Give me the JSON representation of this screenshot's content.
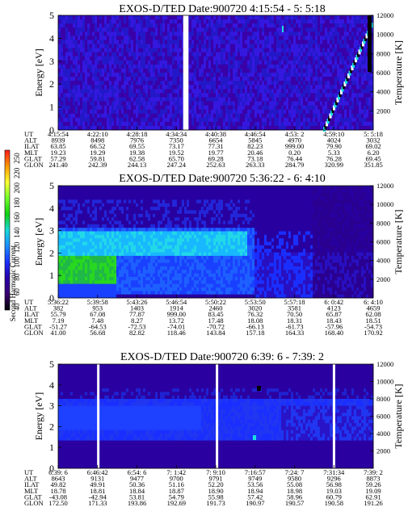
{
  "colors": {
    "background": "#ffffff",
    "low": "#2a008f",
    "mid": "#1a2fff",
    "high": "#19e8e8",
    "peak": "#29d629",
    "gap": "#ffffff"
  },
  "colorbar": {
    "label": "Second Harmonic Current",
    "ticks": [
      "250",
      "220",
      "200",
      "180",
      "160",
      "140",
      "120",
      "100",
      "80",
      "60",
      "40"
    ],
    "stops": [
      "#ff1a1a",
      "#ff9900",
      "#ffff33",
      "#73ff2a",
      "#10d010",
      "#18d8d8",
      "#1a8dff",
      "#1a2fff",
      "#2800a8",
      "#3a0070",
      "#000000"
    ]
  },
  "chart_data": [
    {
      "type": "heatmap",
      "title": "EXOS-D/TED   Date:900720  4:15:54 - 5: 5:18",
      "ylabel": "Energy [eV]",
      "y2label": "Temperature [K]",
      "ylim": [
        0,
        5
      ],
      "yticks": [
        "0",
        "1",
        "2",
        "3",
        "4",
        "5"
      ],
      "y2lim": [
        0,
        12000
      ],
      "y2ticks": [
        "2000",
        "4000",
        "6000",
        "8000",
        "10000",
        "12000"
      ],
      "x_info": [
        [
          "UT",
          "4:15:54",
          "4:22:10",
          "4:28:18",
          "4:34:34",
          "4:40:38",
          "4:46:54",
          "4:53: 2",
          "4:59:10",
          "5: 5:18"
        ],
        [
          "ALT",
          "8939",
          "8498",
          "7976",
          "7350",
          "6654",
          "5845",
          "4970",
          "4024",
          "3032"
        ],
        [
          "ILAT",
          "63.85",
          "66.52",
          "69.55",
          "73.17",
          "77.31",
          "82.23",
          "999.00",
          "79.90",
          "69.02"
        ],
        [
          "MLT",
          "19.23",
          "19.29",
          "19.38",
          "19.52",
          "19.77",
          "20.46",
          "0.20",
          "5.33",
          "6.20"
        ],
        [
          "GLAT",
          "57.29",
          "59.81",
          "62.58",
          "65.70",
          "69.28",
          "73.18",
          "76.44",
          "76.28",
          "69.45"
        ],
        [
          "GLON",
          "241.40",
          "242.39",
          "244.13",
          "247.24",
          "252.63",
          "263.33",
          "284.79",
          "320.99",
          "351.85"
        ]
      ],
      "gaps": [
        {
          "from": "4:35:30",
          "to": "4:36:20"
        }
      ]
    },
    {
      "type": "heatmap",
      "title": "EXOS-D/TED   Date:900720  5:36:22 - 6: 4:10",
      "ylabel": "Energy [eV]",
      "y2label": "Temperature [K]",
      "ylim": [
        0,
        5
      ],
      "yticks": [
        "0",
        "1",
        "2",
        "3",
        "4",
        "5"
      ],
      "y2lim": [
        0,
        12000
      ],
      "y2ticks": [
        "2000",
        "4000",
        "6000",
        "8000",
        "10000",
        "12000"
      ],
      "x_info": [
        [
          "UT",
          "5:36:22",
          "5:39:58",
          "5:43:26",
          "5:46:54",
          "5:50:22",
          "5:53:50",
          "5:57:18",
          "6: 0:42",
          "6: 4:10"
        ],
        [
          "ALT",
          "382",
          "953",
          "1403",
          "1914",
          "2460",
          "3020",
          "3581",
          "4123",
          "4659"
        ],
        [
          "ILAT",
          "55.79",
          "67.08",
          "77.87",
          "999.00",
          "83.45",
          "76.32",
          "70.50",
          "65.87",
          "62.08"
        ],
        [
          "MLT",
          "7.19",
          "7.48",
          "8.27",
          "13.72",
          "17.48",
          "18.08",
          "18.31",
          "18.43",
          "18.51"
        ],
        [
          "GLAT",
          "-51.27",
          "-64.53",
          "-72.53",
          "-74.01",
          "-70.72",
          "-66.13",
          "-61.73",
          "-57.96",
          "-54.73"
        ],
        [
          "GLON",
          "41.00",
          "56.68",
          "82.82",
          "118.46",
          "143.84",
          "157.18",
          "164.33",
          "168.40",
          "170.92"
        ]
      ],
      "gaps": []
    },
    {
      "type": "heatmap",
      "title": "EXOS-D/TED   Date:900720  6:39: 6 - 7:39: 2",
      "ylabel": "Energy [eV]",
      "y2label": "Temperature [K]",
      "ylim": [
        0,
        5
      ],
      "yticks": [
        "0",
        "1",
        "2",
        "3",
        "4",
        "5"
      ],
      "y2lim": [
        0,
        12000
      ],
      "y2ticks": [
        "2000",
        "4000",
        "6000",
        "8000",
        "10000",
        "12000"
      ],
      "x_info": [
        [
          "UT",
          "6:39: 6",
          "6:46:42",
          "6:54: 6",
          "7: 1:42",
          "7: 9:10",
          "7:16:57",
          "7:24: 7",
          "7:31:34",
          "7:39: 2"
        ],
        [
          "ALT",
          "8643",
          "9131",
          "9477",
          "9700",
          "9791",
          "9749",
          "9580",
          "9296",
          "8873"
        ],
        [
          "ILAT",
          "49.82",
          "49.91",
          "50.36",
          "51.16",
          "52.20",
          "53.56",
          "55.08",
          "56.98",
          "59.26"
        ],
        [
          "MLT",
          "18.78",
          "18.81",
          "18.84",
          "18.87",
          "18.90",
          "18.94",
          "18.98",
          "19.03",
          "19.09"
        ],
        [
          "GLAT",
          "-43.08",
          "-42.94",
          "53.81",
          "54.79",
          "55.98",
          "57.42",
          "58.96",
          "60.79",
          "62.91"
        ],
        [
          "GLON",
          "172.50",
          "171.33",
          "193.86",
          "192.69",
          "191.73",
          "190.97",
          "190.57",
          "190.58",
          "191.26"
        ]
      ],
      "gaps": [
        {
          "from": "6:46:30",
          "to": "6:46:55"
        },
        {
          "from": "7: 9: 5",
          "to": "7: 9:15"
        },
        {
          "from": "7:31:20",
          "to": "7:31:45"
        }
      ]
    }
  ]
}
